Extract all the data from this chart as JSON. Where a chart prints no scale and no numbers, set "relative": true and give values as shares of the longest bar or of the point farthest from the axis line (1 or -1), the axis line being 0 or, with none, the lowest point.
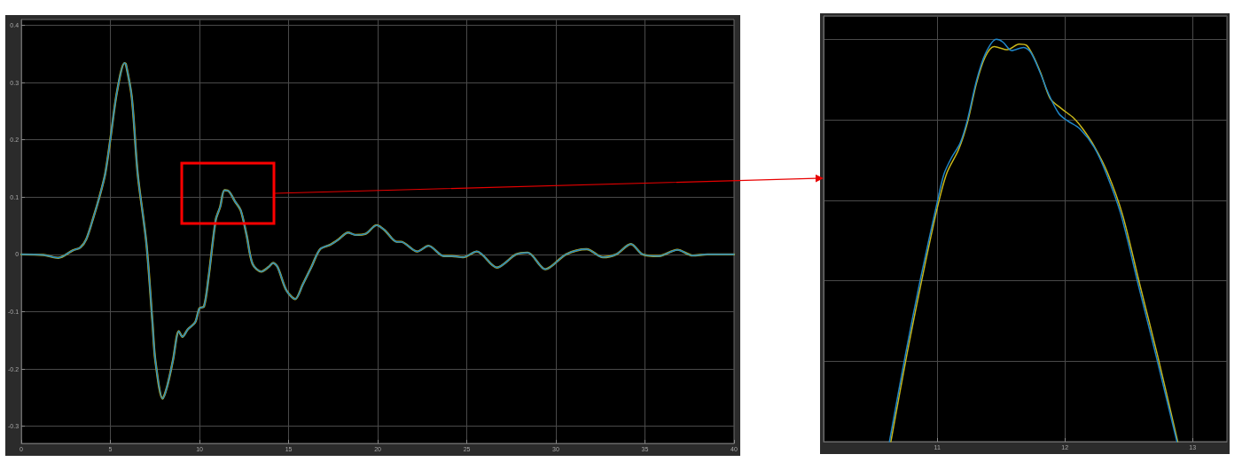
{
  "chart_data": [
    {
      "type": "line",
      "x": [
        0,
        1.24,
        2.07,
        2.89,
        3.31,
        3.64,
        4.05,
        4.38,
        4.71,
        5.0,
        5.37,
        5.79,
        5.87,
        6.2,
        6.53,
        7.02,
        7.36,
        7.52,
        7.93,
        8.18,
        8.51,
        8.84,
        9.04,
        9.34,
        9.75,
        10.0,
        10.25,
        10.5,
        10.91,
        11.16,
        11.4,
        11.65,
        11.98,
        12.31,
        12.64,
        12.98,
        13.47,
        13.88,
        14.13,
        14.38,
        14.88,
        15.37,
        15.79,
        16.28,
        16.77,
        17.35,
        17.8,
        18.34,
        18.75,
        19.33,
        19.94,
        20.4,
        21.07,
        21.3,
        22.22,
        22.85,
        23.71,
        24.17,
        24.79,
        25.56,
        26.69,
        27.76,
        28.42,
        29.41,
        30.57,
        31.73,
        32.64,
        33.38,
        34.21,
        34.87,
        35.78,
        36.82,
        37.68,
        38.5,
        39.58,
        40
      ],
      "series": [
        {
          "color": "#c9b71a",
          "values": [
            0,
            -0.001,
            -0.006,
            0.007,
            0.012,
            0.026,
            0.065,
            0.1,
            0.141,
            0.202,
            0.284,
            0.334,
            0.332,
            0.274,
            0.141,
            0.019,
            -0.119,
            -0.185,
            -0.252,
            -0.231,
            -0.185,
            -0.134,
            -0.144,
            -0.131,
            -0.119,
            -0.094,
            -0.091,
            -0.042,
            0.06,
            0.083,
            0.112,
            0.11,
            0.093,
            0.077,
            0.034,
            -0.017,
            -0.03,
            -0.022,
            -0.015,
            -0.022,
            -0.063,
            -0.078,
            -0.053,
            -0.022,
            0.009,
            0.017,
            0.026,
            0.038,
            0.034,
            0.036,
            0.051,
            0.042,
            0.022,
            0.022,
            0.005,
            0.015,
            -0.003,
            -0.003,
            -0.005,
            0.005,
            -0.023,
            0,
            0.003,
            -0.026,
            0,
            0.009,
            -0.005,
            0,
            0.018,
            0,
            -0.003,
            0.008,
            -0.002,
            0,
            0,
            0
          ]
        },
        {
          "color": "#1f86c8",
          "values": [
            0,
            -0.001,
            -0.006,
            0.007,
            0.012,
            0.026,
            0.065,
            0.1,
            0.141,
            0.202,
            0.284,
            0.334,
            0.332,
            0.274,
            0.141,
            0.019,
            -0.119,
            -0.185,
            -0.252,
            -0.231,
            -0.185,
            -0.134,
            -0.144,
            -0.131,
            -0.119,
            -0.094,
            -0.091,
            -0.042,
            0.06,
            0.083,
            0.112,
            0.11,
            0.093,
            0.077,
            0.034,
            -0.017,
            -0.03,
            -0.022,
            -0.015,
            -0.022,
            -0.063,
            -0.078,
            -0.053,
            -0.022,
            0.009,
            0.017,
            0.026,
            0.038,
            0.034,
            0.036,
            0.051,
            0.042,
            0.022,
            0.022,
            0.005,
            0.015,
            -0.003,
            -0.003,
            -0.005,
            0.005,
            -0.023,
            0,
            0.003,
            -0.026,
            0,
            0.009,
            -0.005,
            0,
            0.018,
            0,
            -0.003,
            0.008,
            -0.002,
            0,
            0,
            0
          ]
        }
      ],
      "xlim": [
        0,
        40
      ],
      "xticks": [
        0,
        5,
        10,
        15,
        20,
        25,
        30,
        35,
        40
      ],
      "ylim": [
        -0.33,
        0.41
      ],
      "yticks": [
        -0.3,
        -0.2,
        -0.1,
        0,
        0.1,
        0.2,
        0.3,
        0.4
      ],
      "grid": true,
      "marker": "none",
      "line_style": "solid"
    },
    {
      "type": "line",
      "relative": true,
      "series": [
        {
          "color": "#c9b71a",
          "x": [
            10.637,
            10.764,
            10.88,
            11.0,
            11.076,
            11.169,
            11.238,
            11.307,
            11.376,
            11.446,
            11.55,
            11.642,
            11.7,
            11.804,
            11.885,
            11.977,
            12.07,
            12.139,
            12.231,
            12.335,
            12.451,
            12.589,
            12.728,
            12.884
          ],
          "values": [
            0,
            0.219,
            0.403,
            0.58,
            0.668,
            0.727,
            0.794,
            0.89,
            0.956,
            0.982,
            0.974,
            0.988,
            0.985,
            0.922,
            0.853,
            0.827,
            0.804,
            0.778,
            0.734,
            0.668,
            0.565,
            0.388,
            0.212,
            0
          ]
        },
        {
          "color": "#1f86c8",
          "x": [
            10.626,
            10.753,
            10.868,
            11.0,
            11.053,
            11.111,
            11.18,
            11.238,
            11.307,
            11.376,
            11.464,
            11.515,
            11.584,
            11.677,
            11.734,
            11.804,
            11.873,
            11.954,
            12.023,
            12.116,
            12.231,
            12.323,
            12.439,
            12.577,
            12.716,
            12.878
          ],
          "values": [
            0,
            0.219,
            0.403,
            0.595,
            0.665,
            0.705,
            0.742,
            0.801,
            0.896,
            0.963,
            1,
            0.993,
            0.972,
            0.98,
            0.967,
            0.919,
            0.864,
            0.815,
            0.797,
            0.778,
            0.731,
            0.668,
            0.565,
            0.388,
            0.212,
            0
          ]
        }
      ],
      "xlim": [
        10.11,
        13.27
      ],
      "xticks": [
        11,
        12,
        13
      ],
      "grid": true,
      "marker": "none",
      "line_style": "solid"
    }
  ]
}
